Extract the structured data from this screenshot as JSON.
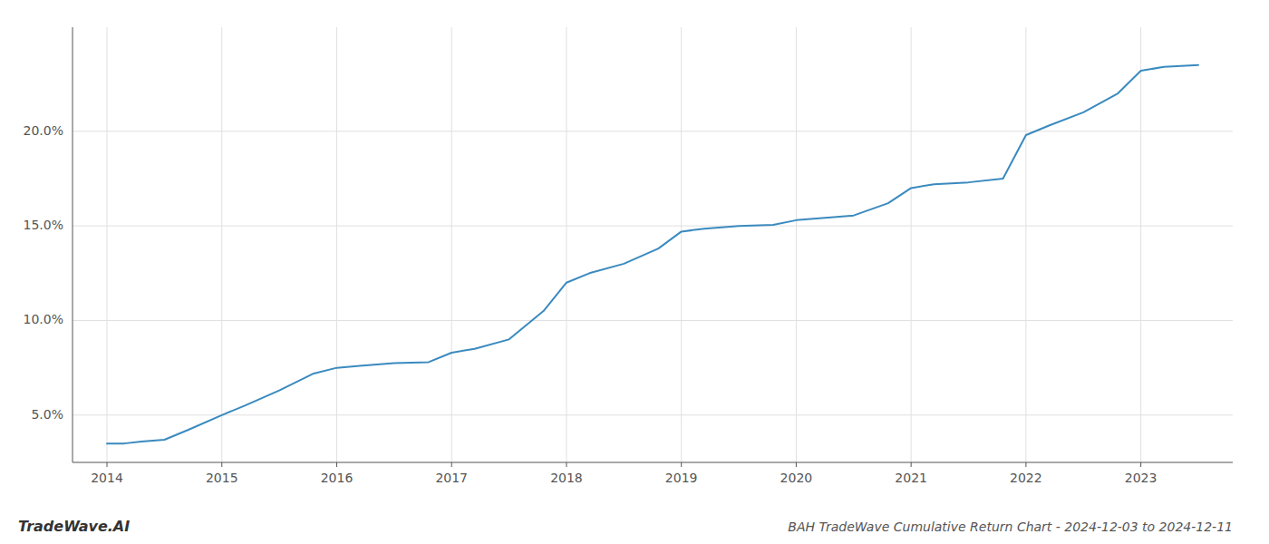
{
  "chart_data": {
    "type": "line",
    "title": "BAH TradeWave Cumulative Return Chart - 2024-12-03 to 2024-12-11",
    "annotations": [
      "TradeWave.AI"
    ],
    "x": [
      2014.0,
      2014.15,
      2014.3,
      2014.5,
      2014.7,
      2015.0,
      2015.2,
      2015.5,
      2015.8,
      2016.0,
      2016.2,
      2016.5,
      2016.8,
      2017.0,
      2017.2,
      2017.5,
      2017.8,
      2018.0,
      2018.2,
      2018.5,
      2018.8,
      2019.0,
      2019.2,
      2019.5,
      2019.8,
      2020.0,
      2020.2,
      2020.5,
      2020.8,
      2021.0,
      2021.2,
      2021.5,
      2021.8,
      2022.0,
      2022.2,
      2022.5,
      2022.8,
      2023.0,
      2023.2,
      2023.5
    ],
    "values": [
      3.5,
      3.5,
      3.6,
      3.7,
      4.2,
      5.0,
      5.5,
      6.3,
      7.2,
      7.5,
      7.6,
      7.75,
      7.8,
      8.3,
      8.5,
      9.0,
      10.5,
      12.0,
      12.5,
      13.0,
      13.8,
      14.7,
      14.85,
      15.0,
      15.05,
      15.3,
      15.4,
      15.55,
      16.2,
      17.0,
      17.2,
      17.3,
      17.5,
      19.8,
      20.3,
      21.0,
      22.0,
      23.2,
      23.4,
      23.5
    ],
    "color": "#3a8abf",
    "xlim": [
      2013.7,
      2023.8
    ],
    "ylim": [
      2.5,
      25.5
    ],
    "xticks": [
      2014,
      2015,
      2016,
      2017,
      2018,
      2019,
      2020,
      2021,
      2022,
      2023
    ],
    "yticks": [
      {
        "value": 5.0,
        "label": "5.0%"
      },
      {
        "value": 10.0,
        "label": "10.0%"
      },
      {
        "value": 15.0,
        "label": "15.0%"
      },
      {
        "value": 20.0,
        "label": "20.0%"
      }
    ],
    "grid": true
  }
}
